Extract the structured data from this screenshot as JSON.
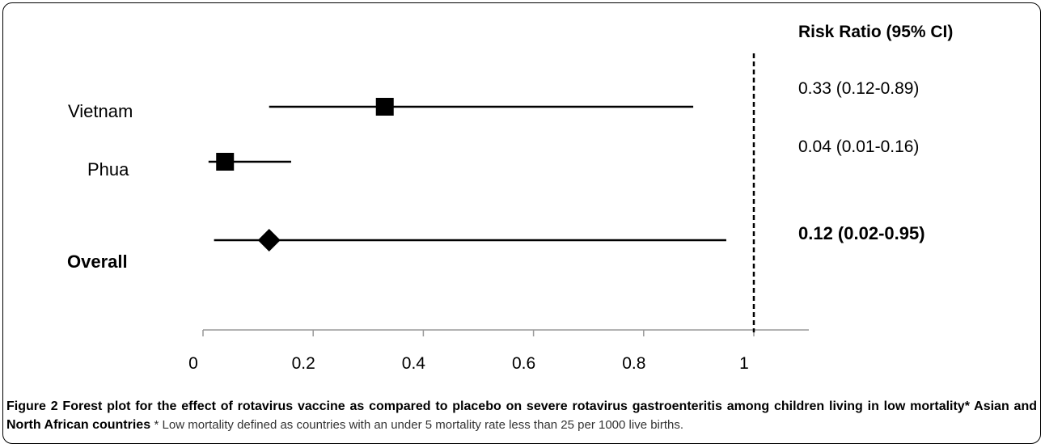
{
  "chart_data": {
    "type": "forest",
    "column_header": "Risk Ratio (95% CI)",
    "xlim": [
      0,
      1.1
    ],
    "xticks": [
      0,
      0.2,
      0.4,
      0.6,
      0.8,
      1
    ],
    "xtick_labels": [
      "0",
      "0.2",
      "0.4",
      "0.6",
      "0.8",
      "1"
    ],
    "reference_line": 1,
    "rows": [
      {
        "label": "Vietnam",
        "estimate": 0.33,
        "lower": 0.12,
        "upper": 0.89,
        "text": "0.33 (0.12-0.89)",
        "marker": "square",
        "bold": false
      },
      {
        "label": "Phua",
        "estimate": 0.04,
        "lower": 0.01,
        "upper": 0.16,
        "text": "0.04 (0.01-0.16)",
        "marker": "square",
        "bold": false
      },
      {
        "label": "Overall",
        "estimate": 0.12,
        "lower": 0.02,
        "upper": 0.95,
        "text": "0.12 (0.02-0.95)",
        "marker": "diamond",
        "bold": true
      }
    ]
  },
  "caption": {
    "lead": "Figure 2 Forest plot for the effect of rotavirus vaccine as compared to placebo on severe rotavirus gastroenteritis among children living in low mortality* Asian and North African countries",
    "note": "* Low mortality defined as countries with an under 5 mortality rate less than 25 per 1000 live births."
  }
}
